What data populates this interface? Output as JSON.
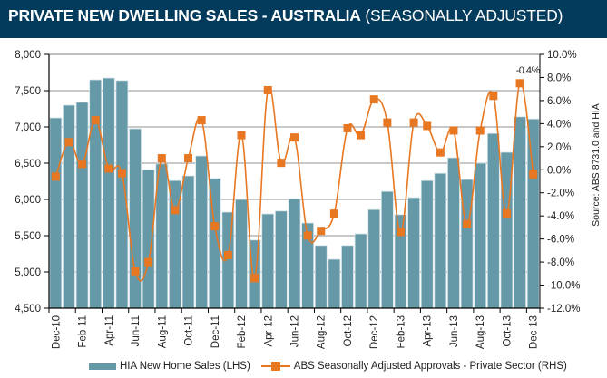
{
  "header": {
    "title_bold": "PRIVATE NEW DWELLING SALES -  AUSTRALIA",
    "title_light": "(SEASONALLY ADJUSTED)"
  },
  "source": "Source: ABS 8731.0 and HIA",
  "colors": {
    "header_bg": "#023b5c",
    "bars": "#6699a8",
    "line": "#e87722",
    "grid": "#a6a6a6"
  },
  "legend": {
    "bars_label": "HIA New Home Sales (LHS)",
    "line_label": "ABS Seasonally Adjusted Approvals - Private Sector (RHS)"
  },
  "chart_data": {
    "type": "bar",
    "title": "PRIVATE NEW DWELLING SALES - AUSTRALIA (SEASONALLY ADJUSTED)",
    "xlabel": "",
    "ylabel": "",
    "y2label": "",
    "grid": true,
    "legend_position": "bottom",
    "categories": [
      "Dec-10",
      "Jan-11",
      "Feb-11",
      "Mar-11",
      "Apr-11",
      "May-11",
      "Jun-11",
      "Jul-11",
      "Aug-11",
      "Sep-11",
      "Oct-11",
      "Nov-11",
      "Dec-11",
      "Jan-12",
      "Feb-12",
      "Mar-12",
      "Apr-12",
      "May-12",
      "Jun-12",
      "Jul-12",
      "Aug-12",
      "Sep-12",
      "Oct-12",
      "Nov-12",
      "Dec-12",
      "Jan-13",
      "Feb-13",
      "Mar-13",
      "Apr-13",
      "May-13",
      "Jun-13",
      "Jul-13",
      "Aug-13",
      "Sep-13",
      "Oct-13",
      "Nov-13",
      "Dec-13"
    ],
    "tick_labels": [
      "Dec-10",
      "Feb-11",
      "Apr-11",
      "Jun-11",
      "Aug-11",
      "Oct-11",
      "Dec-11",
      "Feb-12",
      "Apr-12",
      "Jun-12",
      "Aug-12",
      "Oct-12",
      "Dec-12",
      "Feb-13",
      "Apr-13",
      "Jun-13",
      "Aug-13",
      "Oct-13",
      "Dec-13"
    ],
    "ylim": [
      4500,
      8000
    ],
    "yticks": [
      "4,500",
      "5,000",
      "5,500",
      "6,000",
      "6,500",
      "7,000",
      "7,500",
      "8,000"
    ],
    "y2lim": [
      -12,
      10
    ],
    "y2ticks": [
      "-12.0%",
      "-10.0%",
      "-8.0%",
      "-6.0%",
      "-4.0%",
      "-2.0%",
      "0.0%",
      "2.0%",
      "4.0%",
      "6.0%",
      "8.0%",
      "10.0%"
    ],
    "series": [
      {
        "name": "HIA New Home Sales (LHS)",
        "type": "bar",
        "axis": "left",
        "values": [
          7125,
          7300,
          7340,
          7650,
          7675,
          7640,
          6975,
          6410,
          6490,
          6260,
          6325,
          6600,
          6290,
          5825,
          6000,
          5440,
          5800,
          5840,
          6010,
          5675,
          5365,
          5175,
          5365,
          5525,
          5860,
          6110,
          5790,
          6025,
          6260,
          6360,
          6575,
          6275,
          6500,
          6910,
          6650,
          7140,
          7110
        ]
      },
      {
        "name": "ABS Seasonally Adjusted Approvals - Private Sector (RHS)",
        "type": "line",
        "axis": "right",
        "unit": "%",
        "values": [
          -0.6,
          2.4,
          0.5,
          4.3,
          0.1,
          -0.3,
          -8.8,
          -8.0,
          1.0,
          -3.5,
          1.0,
          4.3,
          -4.9,
          -7.4,
          3.0,
          -9.4,
          6.9,
          0.6,
          2.8,
          -5.7,
          -5.3,
          -3.8,
          3.6,
          3.0,
          6.1,
          4.1,
          -5.4,
          4.1,
          3.8,
          1.5,
          3.4,
          -4.7,
          3.4,
          6.4,
          -3.8,
          7.5,
          -0.4
        ]
      }
    ],
    "annotations": [
      {
        "text": "-0.4%",
        "category": "Dec-13",
        "series": 1
      }
    ]
  }
}
